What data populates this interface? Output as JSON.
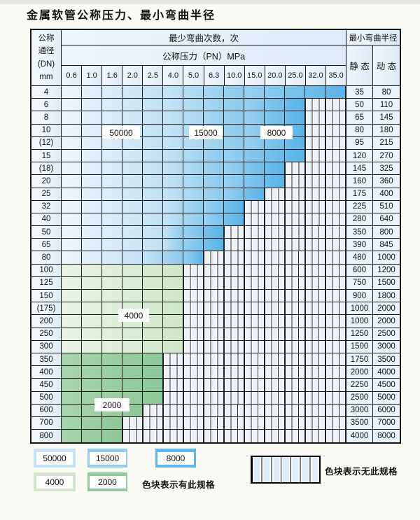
{
  "title": "金属软管公称压力、最小弯曲半径",
  "colors": {
    "cycles_50000": "#c6e2f5",
    "cycles_15000": "#92cdee",
    "cycles_8000": "#60b6e8",
    "cycles_4000": "#cfe6ca",
    "cycles_2000": "#92ca9d",
    "hatch_fill": "#ecf2f8",
    "grid_line": "#161616"
  },
  "table": {
    "header": {
      "dn_lines": [
        "公称",
        "通径",
        "(DN)",
        "mm"
      ],
      "cycles_title": "最少弯曲次数，次",
      "pressure_title": "公称压力（PN）MPa",
      "radius_title": "最小弯曲半径",
      "static_label": "静 态",
      "dynamic_label": "动 态",
      "pressures": [
        "0.6",
        "1.0",
        "1.6",
        "2.0",
        "2.5",
        "4.0",
        "5.0",
        "6.3",
        "10.0",
        "15.0",
        "20.0",
        "25.0",
        "32.0",
        "35.0"
      ]
    },
    "zone_legend_note": "L=50000次 M=15000次 D=8000次 A=4000次 B=2000次 H=无此规格(斜线格)",
    "rows": [
      {
        "dn": "4",
        "zones": "LLLLLMMMMDDDDD",
        "static": "35",
        "dynamic": "80"
      },
      {
        "dn": "6",
        "zones": "LLLLLMMMMDDDHH",
        "static": "50",
        "dynamic": "110"
      },
      {
        "dn": "8",
        "zones": "LLLLLMMMMDDDHH",
        "static": "65",
        "dynamic": "145"
      },
      {
        "dn": "10",
        "zones": "LLLLLMMMMDDDHH",
        "static": "80",
        "dynamic": "180"
      },
      {
        "dn": "(12)",
        "zones": "LLLLLMMMMDDDHH",
        "static": "95",
        "dynamic": "215"
      },
      {
        "dn": "15",
        "zones": "LLLLLMMMDDDDHH",
        "static": "120",
        "dynamic": "270"
      },
      {
        "dn": "(18)",
        "zones": "LLLLLMMMDDDHHH",
        "static": "145",
        "dynamic": "325"
      },
      {
        "dn": "20",
        "zones": "LLLLLMMMDDDHHH",
        "static": "160",
        "dynamic": "360"
      },
      {
        "dn": "25",
        "zones": "LLLLLMMMDDHHHH",
        "static": "175",
        "dynamic": "400"
      },
      {
        "dn": "32",
        "zones": "LLLLLMMDDHHHHH",
        "static": "225",
        "dynamic": "510"
      },
      {
        "dn": "40",
        "zones": "LLLLLMMDDHHHHH",
        "static": "280",
        "dynamic": "640"
      },
      {
        "dn": "50",
        "zones": "LLLLLMDDHHHHHH",
        "static": "350",
        "dynamic": "800"
      },
      {
        "dn": "65",
        "zones": "LLLLLMDDHHHHHH",
        "static": "390",
        "dynamic": "845"
      },
      {
        "dn": "80",
        "zones": "LLLLMMDHHHHHHH",
        "static": "480",
        "dynamic": "1000"
      },
      {
        "dn": "100",
        "zones": "AAAAAAHHHHHHHH",
        "static": "600",
        "dynamic": "1200"
      },
      {
        "dn": "125",
        "zones": "AAAAAAHHHHHHHH",
        "static": "750",
        "dynamic": "1500"
      },
      {
        "dn": "150",
        "zones": "AAAAAAHHHHHHHH",
        "static": "900",
        "dynamic": "1800"
      },
      {
        "dn": "(175)",
        "zones": "AAAAAAHHHHHHHH",
        "static": "1000",
        "dynamic": "2000"
      },
      {
        "dn": "200",
        "zones": "AAAAAAHHHHHHHH",
        "static": "1000",
        "dynamic": "2000"
      },
      {
        "dn": "250",
        "zones": "AAAAAAHHHHHHHH",
        "static": "1250",
        "dynamic": "2500"
      },
      {
        "dn": "300",
        "zones": "AAAAAAHHHHHHHH",
        "static": "1500",
        "dynamic": "3000"
      },
      {
        "dn": "350",
        "zones": "BBBBBHHHHHHHHH",
        "static": "1750",
        "dynamic": "3500"
      },
      {
        "dn": "400",
        "zones": "BBBBBHHHHHHHHH",
        "static": "2000",
        "dynamic": "4000"
      },
      {
        "dn": "450",
        "zones": "BBBBBHHHHHHHHH",
        "static": "2250",
        "dynamic": "4500"
      },
      {
        "dn": "500",
        "zones": "BBBBBHHHHHHHHH",
        "static": "2500",
        "dynamic": "5000"
      },
      {
        "dn": "600",
        "zones": "BBBBHHHHHHHHHH",
        "static": "3000",
        "dynamic": "6000"
      },
      {
        "dn": "700",
        "zones": "BBBHHHHHHHHHHH",
        "static": "3500",
        "dynamic": "7000"
      },
      {
        "dn": "800",
        "zones": "BBBHHHHHHHHHHH",
        "static": "4000",
        "dynamic": "8000"
      }
    ],
    "zone_labels": [
      {
        "id": "50000",
        "text": "50000"
      },
      {
        "id": "15000",
        "text": "15000"
      },
      {
        "id": "8000",
        "text": "8000"
      },
      {
        "id": "4000",
        "text": "4000"
      },
      {
        "id": "2000",
        "text": "2000"
      }
    ]
  },
  "legend": {
    "swatches": [
      {
        "id": "50000",
        "text": "50000",
        "color": "cycles_50000"
      },
      {
        "id": "15000",
        "text": "15000",
        "color": "cycles_15000"
      },
      {
        "id": "8000",
        "text": "8000",
        "color": "cycles_8000"
      },
      {
        "id": "4000",
        "text": "4000",
        "color": "cycles_4000"
      },
      {
        "id": "2000",
        "text": "2000",
        "color": "cycles_2000"
      }
    ],
    "has_spec_text": "色块表示有此规格",
    "no_spec_text": "色块表示无此规格"
  }
}
